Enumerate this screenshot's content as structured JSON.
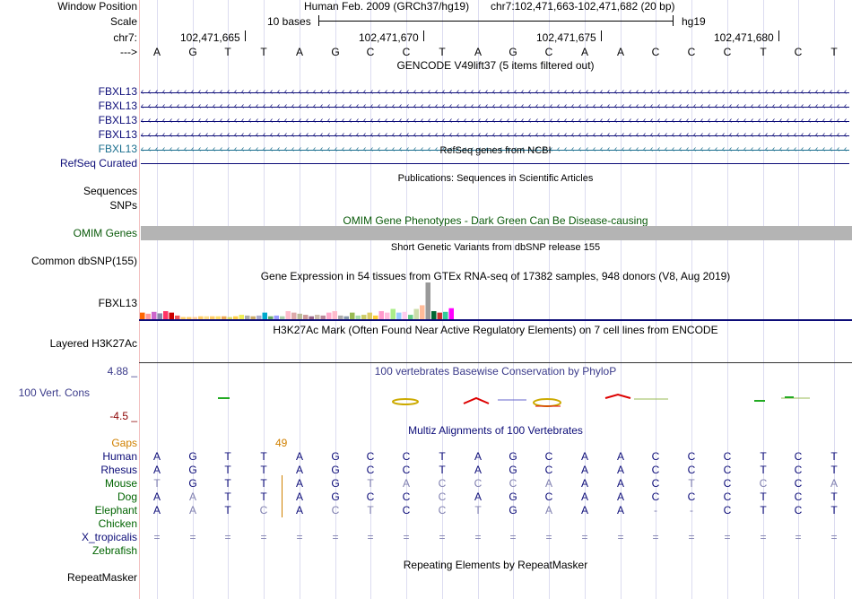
{
  "header": {
    "window_position_label": "Window Position",
    "scale_label": "Scale",
    "chrom_label": "chr7:",
    "arrow_label": "--->",
    "assembly": "Human Feb. 2009 (GRCh37/hg19)",
    "region": "chr7:102,471,663-102,471,682 (20 bp)",
    "scale_text": "10 bases",
    "db": "hg19",
    "ticks": [
      "102,471,665",
      "102,471,670",
      "102,471,675",
      "102,471,680"
    ]
  },
  "sequence": [
    "A",
    "G",
    "T",
    "T",
    "A",
    "G",
    "C",
    "C",
    "T",
    "A",
    "G",
    "C",
    "A",
    "A",
    "C",
    "C",
    "C",
    "T",
    "C",
    "T"
  ],
  "gencode": {
    "title": "GENCODE V49lift37 (5 items filtered out)",
    "genes": [
      "FBXL13",
      "FBXL13",
      "FBXL13",
      "FBXL13",
      "FBXL13"
    ]
  },
  "refseq": {
    "title": "RefSeq genes from NCBI",
    "label": "RefSeq Curated"
  },
  "publications": {
    "title": "Publications: Sequences in Scientific Articles",
    "label1": "Sequences",
    "label2": "SNPs"
  },
  "omim": {
    "title": "OMIM Gene Phenotypes - Dark Green Can Be Disease-causing",
    "label": "OMIM Genes"
  },
  "dbsnp": {
    "title": "Short Genetic Variants from dbSNP release 155",
    "label": "Common dbSNP(155)"
  },
  "gtex": {
    "title": "Gene Expression in 54 tissues from GTEx RNA-seq of 17382 samples, 948 donors (V8, Aug 2019)",
    "label": "FBXL13",
    "bar_heights": [
      0.18,
      0.15,
      0.2,
      0.16,
      0.22,
      0.18,
      0.1,
      0.06,
      0.06,
      0.06,
      0.08,
      0.08,
      0.08,
      0.08,
      0.08,
      0.06,
      0.08,
      0.12,
      0.1,
      0.08,
      0.1,
      0.18,
      0.08,
      0.1,
      0.08,
      0.22,
      0.18,
      0.15,
      0.12,
      0.08,
      0.12,
      0.1,
      0.18,
      0.22,
      0.1,
      0.08,
      0.18,
      0.1,
      0.12,
      0.18,
      0.1,
      0.22,
      0.18,
      0.28,
      0.18,
      0.2,
      0.12,
      0.28,
      0.38,
      1.0,
      0.22,
      0.18,
      0.2,
      0.3
    ],
    "bar_colors": [
      "#ff6600",
      "#ff9999",
      "#cc66cc",
      "#8888aa",
      "#ff3366",
      "#cc0000",
      "#ee5555",
      "#ffcc66",
      "#ffcc66",
      "#ffcc99",
      "#ffcc66",
      "#ffdd88",
      "#ffcc66",
      "#ffdd66",
      "#eeaa55",
      "#dddd66",
      "#ffcc44",
      "#eeee55",
      "#aaaaaa",
      "#ccaa66",
      "#aaaacc",
      "#00aacc",
      "#66aa66",
      "#9999ff",
      "#aaccaa",
      "#ffbbcc",
      "#ddaaaa",
      "#bbbb99",
      "#cc9999",
      "#996688",
      "#ccbbaa",
      "#bb8899",
      "#ffaacc",
      "#ffbbcc",
      "#aaaaaa",
      "#8899aa",
      "#99bb55",
      "#aaddaa",
      "#cccc66",
      "#ddcc66",
      "#ffcc33",
      "#ff99cc",
      "#ffbbdd",
      "#aaee88",
      "#99ccff",
      "#ffccee",
      "#66cc88",
      "#ccddaa",
      "#ffbb99",
      "#999999",
      "#006633",
      "#cc3333",
      "#33cc99",
      "#ff00ff"
    ]
  },
  "h3k27ac": {
    "title": "H3K27Ac Mark (Often Found Near Active Regulatory Elements) on 7 cell lines from ENCODE",
    "label": "Layered H3K27Ac"
  },
  "phylop": {
    "title": "100 vertebrates Basewise Conservation by PhyloP",
    "label": "100 Vert. Cons",
    "max": "4.88 _",
    "min": "-4.5 _"
  },
  "multiz": {
    "title": "Multiz Alignments of 100 Vertebrates",
    "gaps_label": "Gaps",
    "gap_count": "49",
    "species": [
      {
        "name": "Human",
        "seq": [
          "A",
          "G",
          "T",
          "T",
          "A",
          "G",
          "C",
          "C",
          "T",
          "A",
          "G",
          "C",
          "A",
          "A",
          "C",
          "C",
          "C",
          "T",
          "C",
          "T"
        ]
      },
      {
        "name": "Rhesus",
        "seq": [
          "A",
          "G",
          "T",
          "T",
          "A",
          "G",
          "C",
          "C",
          "T",
          "A",
          "G",
          "C",
          "A",
          "A",
          "C",
          "C",
          "C",
          "T",
          "C",
          "T"
        ]
      },
      {
        "name": "Mouse",
        "seq": [
          "T",
          "G",
          "T",
          "T",
          "A",
          "G",
          "T",
          "A",
          "C",
          "C",
          "C",
          "A",
          "A",
          "A",
          "C",
          "T",
          "C",
          "C",
          "C",
          "A"
        ]
      },
      {
        "name": "Dog",
        "seq": [
          "A",
          "A",
          "T",
          "T",
          "A",
          "G",
          "C",
          "C",
          "C",
          "A",
          "G",
          "C",
          "A",
          "A",
          "C",
          "C",
          "C",
          "T",
          "C",
          "T"
        ]
      },
      {
        "name": "Elephant",
        "seq": [
          "A",
          "A",
          "T",
          "C",
          "A",
          "C",
          "T",
          "C",
          "C",
          "T",
          "G",
          "A",
          "A",
          "A",
          "-",
          "-",
          "C",
          "T",
          "C",
          "T"
        ]
      },
      {
        "name": "Chicken",
        "seq": [
          "",
          "",
          "",
          "",
          "",
          "",
          "",
          "",
          "",
          "",
          "",
          "",
          "",
          "",
          "",
          "",
          "",
          "",
          "",
          ""
        ]
      },
      {
        "name": "X_tropicalis",
        "seq": [
          "=",
          "=",
          "=",
          "=",
          "=",
          "=",
          "=",
          "=",
          "=",
          "=",
          "=",
          "=",
          "=",
          "=",
          "=",
          "=",
          "=",
          "=",
          "=",
          "="
        ]
      },
      {
        "name": "Zebrafish",
        "seq": [
          "",
          "",
          "",
          "",
          "",
          "",
          "",
          "",
          "",
          "",
          "",
          "",
          "",
          "",
          "",
          "",
          "",
          "",
          "",
          ""
        ]
      }
    ]
  },
  "repeatmasker": {
    "title": "Repeating Elements by RepeatMasker",
    "label": "RepeatMasker"
  },
  "colors": {
    "navy": "#0c0c78",
    "gene_blue": "#0c0c78",
    "gene_teal": "#1a6e8e",
    "omim_green": "#0a5a0a",
    "conserved": "#0c0c78",
    "mismatch": "#8080b0",
    "gaps_orange": "#d08000",
    "phylop_navy": "#3a3a8a",
    "phylop_min": "#8b0000",
    "species_green": "#006400"
  }
}
